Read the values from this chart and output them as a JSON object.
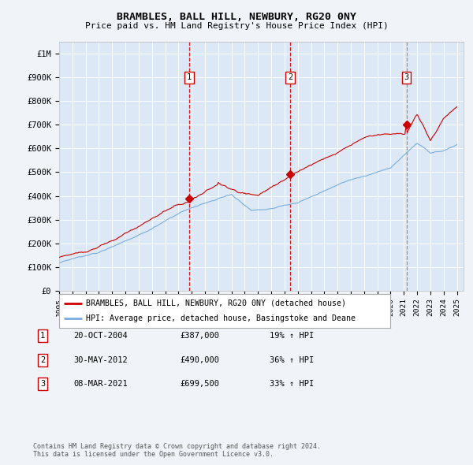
{
  "title": "BRAMBLES, BALL HILL, NEWBURY, RG20 0NY",
  "subtitle": "Price paid vs. HM Land Registry's House Price Index (HPI)",
  "background_color": "#f0f4f9",
  "plot_bg_color": "#dce8f5",
  "grid_color": "#ffffff",
  "sale_color": "#cc0000",
  "hpi_color": "#7aadde",
  "sale_dates": [
    2004.81,
    2012.42,
    2021.19
  ],
  "sale_values": [
    387000,
    490000,
    699500
  ],
  "sale_labels": [
    "1",
    "2",
    "3"
  ],
  "hpi_label": "HPI: Average price, detached house, Basingstoke and Deane",
  "sale_line_label": "BRAMBLES, BALL HILL, NEWBURY, RG20 0NY (detached house)",
  "ylim": [
    0,
    1050000
  ],
  "yticks": [
    0,
    100000,
    200000,
    300000,
    400000,
    500000,
    600000,
    700000,
    800000,
    900000,
    1000000
  ],
  "ytick_labels": [
    "£0",
    "£100K",
    "£200K",
    "£300K",
    "£400K",
    "£500K",
    "£600K",
    "£700K",
    "£800K",
    "£900K",
    "£1M"
  ],
  "footer_line1": "Contains HM Land Registry data © Crown copyright and database right 2024.",
  "footer_line2": "This data is licensed under the Open Government Licence v3.0.",
  "table_rows": [
    [
      "1",
      "20-OCT-2004",
      "£387,000",
      "19% ↑ HPI"
    ],
    [
      "2",
      "30-MAY-2012",
      "£490,000",
      "36% ↑ HPI"
    ],
    [
      "3",
      "08-MAR-2021",
      "£699,500",
      "33% ↑ HPI"
    ]
  ],
  "vline_colors": [
    "#dd0000",
    "#dd0000",
    "#888888"
  ]
}
